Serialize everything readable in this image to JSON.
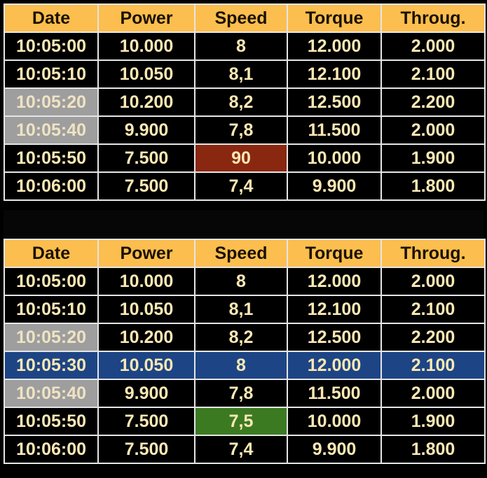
{
  "colors": {
    "header_bg": "#fcbe4e",
    "header_text": "#1a1100",
    "cell_bg": "#000000",
    "cell_text": "#fbe8b4",
    "grid": "#e6e6e6",
    "grey_highlight": "#9e9e9e",
    "red_highlight": "#8a2710",
    "green_highlight": "#3c7a22",
    "blue_highlight": "#1d4585"
  },
  "columns": [
    "Date",
    "Power",
    "Speed",
    "Torque",
    "Throug."
  ],
  "top_table": {
    "rows": [
      [
        "10:05:00",
        "10.000",
        "8",
        "12.000",
        "2.000"
      ],
      [
        "10:05:10",
        "10.050",
        "8,1",
        "12.100",
        "2.100"
      ],
      [
        "10:05:20",
        "10.200",
        "8,2",
        "12.500",
        "2.200"
      ],
      [
        "10:05:40",
        "9.900",
        "7,8",
        "11.500",
        "2.000"
      ],
      [
        "10:05:50",
        "7.500",
        "90",
        "10.000",
        "1.900"
      ],
      [
        "10:06:00",
        "7.500",
        "7,4",
        "9.900",
        "1.800"
      ]
    ]
  },
  "bottom_table": {
    "rows": [
      [
        "10:05:00",
        "10.000",
        "8",
        "12.000",
        "2.000"
      ],
      [
        "10:05:10",
        "10.050",
        "8,1",
        "12.100",
        "2.100"
      ],
      [
        "10:05:20",
        "10.200",
        "8,2",
        "12.500",
        "2.200"
      ],
      [
        "10:05:30",
        "10.050",
        "8",
        "12.000",
        "2.100"
      ],
      [
        "10:05:40",
        "9.900",
        "7,8",
        "11.500",
        "2.000"
      ],
      [
        "10:05:50",
        "7.500",
        "7,5",
        "10.000",
        "1.900"
      ],
      [
        "10:06:00",
        "7.500",
        "7,4",
        "9.900",
        "1.800"
      ]
    ]
  }
}
